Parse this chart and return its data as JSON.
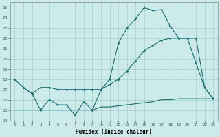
{
  "xlabel": "Humidex (Indice chaleur)",
  "xlim": [
    -0.5,
    23.5
  ],
  "ylim": [
    14,
    25.5
  ],
  "yticks": [
    14,
    15,
    16,
    17,
    18,
    19,
    20,
    21,
    22,
    23,
    24,
    25
  ],
  "xticks": [
    0,
    1,
    2,
    3,
    4,
    5,
    6,
    7,
    8,
    9,
    10,
    11,
    12,
    13,
    14,
    15,
    16,
    17,
    18,
    19,
    20,
    21,
    22,
    23
  ],
  "bg_color": "#cceaea",
  "grid_color": "#aad4d4",
  "line_color": "#1a6b6b",
  "line1_y": [
    18,
    17.2,
    16.6,
    15.0,
    16.0,
    15.5,
    15.5,
    14.5,
    15.8,
    15.0,
    17.0,
    18.0,
    21.5,
    23.0,
    23.9,
    25.0,
    24.7,
    24.8,
    23.2,
    22.0,
    22.0,
    19.6,
    17.2,
    16.1
  ],
  "line2_y": [
    18,
    17.2,
    16.6,
    17.2,
    17.2,
    17.0,
    17.0,
    17.0,
    17.0,
    17.0,
    17.0,
    17.5,
    18.0,
    18.8,
    19.8,
    20.8,
    21.3,
    21.8,
    22.0,
    22.0,
    22.0,
    22.0,
    17.2,
    16.1
  ],
  "line3_y": [
    15.0,
    15.0,
    15.0,
    15.0,
    15.0,
    15.0,
    15.0,
    15.0,
    15.0,
    15.0,
    15.3,
    15.3,
    15.4,
    15.5,
    15.6,
    15.7,
    15.8,
    16.0,
    16.0,
    16.1,
    16.1,
    16.1,
    16.1,
    16.1
  ]
}
